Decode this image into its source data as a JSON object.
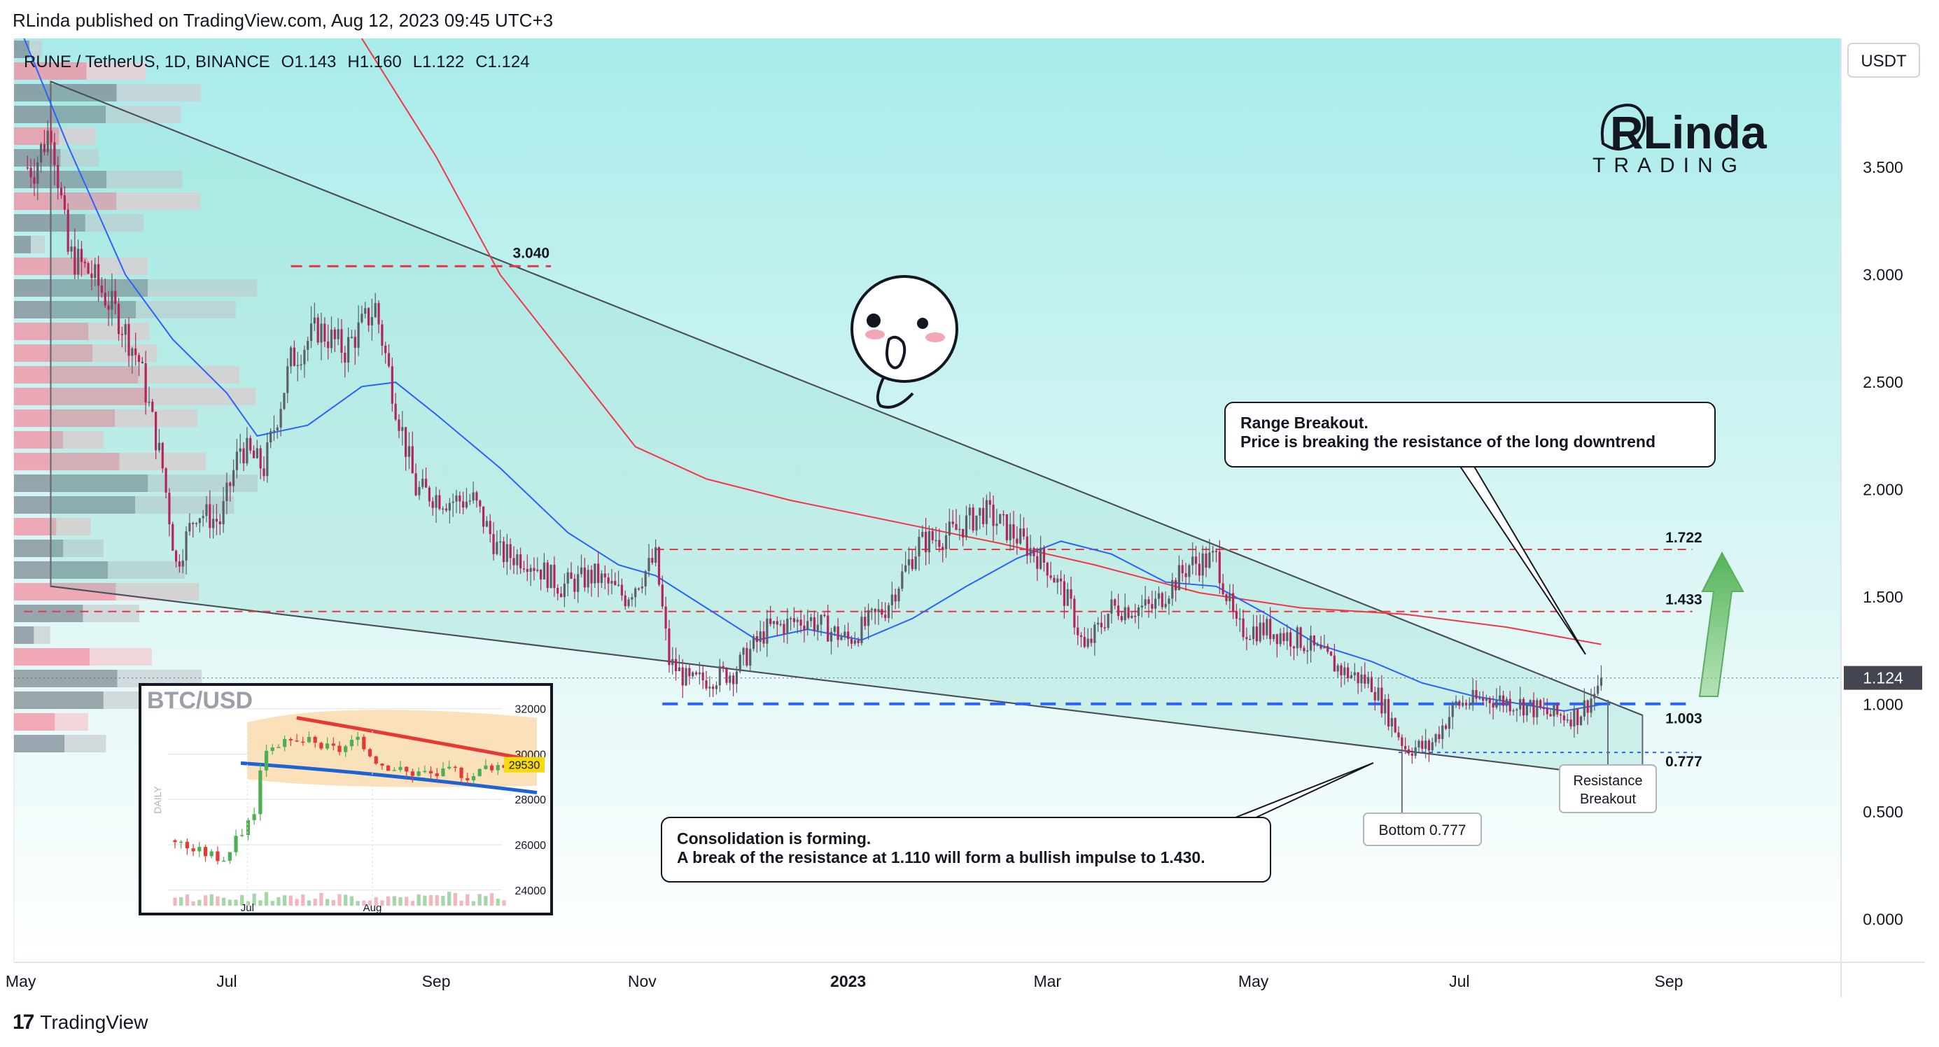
{
  "header": {
    "published": "RLinda published on TradingView.com, Aug 12, 2023 09:45 UTC+3"
  },
  "symbol_line": {
    "pair": "RUNE / TetherUS, 1D, BINANCE",
    "open": "O1.143",
    "high": "H1.160",
    "low": "L1.122",
    "close": "C1.124"
  },
  "currency_button": "USDT",
  "footer": {
    "logo_mark": "17",
    "brand": "TradingView"
  },
  "branding": {
    "top": "RLinda",
    "bottom": "TRADING"
  },
  "colors": {
    "up": "#089981",
    "down": "#f23645",
    "candle": "#b5245a",
    "candle_dark": "#3b3b3b",
    "ma_fast": "#2962ff",
    "ma_slow": "#f23645",
    "breakout_line": "#2962ff",
    "bg_top": "#a9ecec",
    "bg_bottom": "#ffffff",
    "arrow": "#6cc070"
  },
  "chart_data": {
    "type": "candlestick",
    "symbol": "RUNE / TetherUS",
    "timeframe": "1D",
    "exchange": "BINANCE",
    "last_price": 1.124,
    "ylim": [
      -0.2,
      4.1
    ],
    "yticks": [
      "3.500",
      "3.000",
      "2.500",
      "2.000",
      "1.500",
      "1.000",
      "0.500",
      "0.000"
    ],
    "ytick_values": [
      3.5,
      3.0,
      2.5,
      2.0,
      1.5,
      1.0,
      0.5,
      0.0
    ],
    "xticks": [
      {
        "label": "May",
        "date": "2022-05-01"
      },
      {
        "label": "Jul",
        "date": "2022-07-01"
      },
      {
        "label": "Sep",
        "date": "2022-09-01"
      },
      {
        "label": "Nov",
        "date": "2022-11-01"
      },
      {
        "label": "2023",
        "date": "2023-01-01",
        "bold": true
      },
      {
        "label": "Mar",
        "date": "2023-03-01"
      },
      {
        "label": "May",
        "date": "2023-05-01"
      },
      {
        "label": "Jul",
        "date": "2023-07-01"
      },
      {
        "label": "Sep",
        "date": "2023-09-01"
      }
    ],
    "close_path": [
      [
        "2022-05-05",
        3.5
      ],
      [
        "2022-05-10",
        3.7
      ],
      [
        "2022-05-15",
        3.1
      ],
      [
        "2022-05-22",
        3.0
      ],
      [
        "2022-05-30",
        2.8
      ],
      [
        "2022-06-05",
        2.6
      ],
      [
        "2022-06-12",
        2.1
      ],
      [
        "2022-06-16",
        1.65
      ],
      [
        "2022-06-22",
        1.9
      ],
      [
        "2022-06-29",
        1.85
      ],
      [
        "2022-07-05",
        2.2
      ],
      [
        "2022-07-12",
        2.1
      ],
      [
        "2022-07-20",
        2.6
      ],
      [
        "2022-07-28",
        2.75
      ],
      [
        "2022-08-05",
        2.65
      ],
      [
        "2022-08-14",
        2.85
      ],
      [
        "2022-08-20",
        2.4
      ],
      [
        "2022-08-26",
        2.0
      ],
      [
        "2022-09-05",
        1.95
      ],
      [
        "2022-09-12",
        1.95
      ],
      [
        "2022-09-20",
        1.7
      ],
      [
        "2022-09-28",
        1.68
      ],
      [
        "2022-10-08",
        1.55
      ],
      [
        "2022-10-18",
        1.6
      ],
      [
        "2022-10-27",
        1.5
      ],
      [
        "2022-11-05",
        1.68
      ],
      [
        "2022-11-09",
        1.2
      ],
      [
        "2022-11-15",
        1.1
      ],
      [
        "2022-11-28",
        1.15
      ],
      [
        "2022-12-08",
        1.35
      ],
      [
        "2022-12-20",
        1.4
      ],
      [
        "2023-01-01",
        1.3
      ],
      [
        "2023-01-12",
        1.45
      ],
      [
        "2023-01-22",
        1.75
      ],
      [
        "2023-02-01",
        1.8
      ],
      [
        "2023-02-10",
        1.9
      ],
      [
        "2023-02-20",
        1.78
      ],
      [
        "2023-03-01",
        1.65
      ],
      [
        "2023-03-08",
        1.45
      ],
      [
        "2023-03-12",
        1.25
      ],
      [
        "2023-03-20",
        1.45
      ],
      [
        "2023-04-01",
        1.45
      ],
      [
        "2023-04-12",
        1.65
      ],
      [
        "2023-04-20",
        1.68
      ],
      [
        "2023-04-26",
        1.35
      ],
      [
        "2023-05-05",
        1.35
      ],
      [
        "2023-05-15",
        1.3
      ],
      [
        "2023-05-28",
        1.15
      ],
      [
        "2023-06-05",
        1.1
      ],
      [
        "2023-06-10",
        0.95
      ],
      [
        "2023-06-15",
        0.8
      ],
      [
        "2023-06-22",
        0.8
      ],
      [
        "2023-06-30",
        1.0
      ],
      [
        "2023-07-10",
        1.03
      ],
      [
        "2023-07-20",
        1.0
      ],
      [
        "2023-07-28",
        0.95
      ],
      [
        "2023-08-05",
        0.95
      ],
      [
        "2023-08-10",
        1.05
      ],
      [
        "2023-08-12",
        1.124
      ]
    ],
    "ma_fast_path": [
      [
        "2022-05-02",
        4.1
      ],
      [
        "2022-05-15",
        3.6
      ],
      [
        "2022-06-01",
        3.0
      ],
      [
        "2022-06-15",
        2.7
      ],
      [
        "2022-07-01",
        2.45
      ],
      [
        "2022-07-10",
        2.25
      ],
      [
        "2022-07-25",
        2.3
      ],
      [
        "2022-08-10",
        2.48
      ],
      [
        "2022-08-20",
        2.5
      ],
      [
        "2022-09-01",
        2.35
      ],
      [
        "2022-09-20",
        2.1
      ],
      [
        "2022-10-10",
        1.8
      ],
      [
        "2022-10-25",
        1.65
      ],
      [
        "2022-11-05",
        1.6
      ],
      [
        "2022-11-20",
        1.45
      ],
      [
        "2022-12-05",
        1.3
      ],
      [
        "2022-12-20",
        1.35
      ],
      [
        "2023-01-05",
        1.3
      ],
      [
        "2023-01-20",
        1.4
      ],
      [
        "2023-02-05",
        1.55
      ],
      [
        "2023-02-20",
        1.68
      ],
      [
        "2023-03-05",
        1.76
      ],
      [
        "2023-03-20",
        1.7
      ],
      [
        "2023-04-05",
        1.57
      ],
      [
        "2023-04-20",
        1.55
      ],
      [
        "2023-05-05",
        1.42
      ],
      [
        "2023-05-20",
        1.28
      ],
      [
        "2023-06-05",
        1.2
      ],
      [
        "2023-06-20",
        1.1
      ],
      [
        "2023-07-05",
        1.04
      ],
      [
        "2023-07-20",
        1.0
      ],
      [
        "2023-08-01",
        0.97
      ],
      [
        "2023-08-12",
        1.0
      ]
    ],
    "ma_slow_path": [
      [
        "2022-08-10",
        4.1
      ],
      [
        "2022-09-01",
        3.55
      ],
      [
        "2022-09-20",
        3.0
      ],
      [
        "2022-10-10",
        2.6
      ],
      [
        "2022-10-30",
        2.2
      ],
      [
        "2022-11-20",
        2.05
      ],
      [
        "2022-12-15",
        1.95
      ],
      [
        "2023-01-15",
        1.85
      ],
      [
        "2023-02-15",
        1.75
      ],
      [
        "2023-03-15",
        1.65
      ],
      [
        "2023-04-15",
        1.52
      ],
      [
        "2023-05-15",
        1.45
      ],
      [
        "2023-06-15",
        1.42
      ],
      [
        "2023-07-15",
        1.36
      ],
      [
        "2023-08-12",
        1.28
      ]
    ],
    "trendlines": [
      {
        "from": [
          "2022-05-02",
          3.9
        ],
        "to": [
          "2023-08-18",
          0.95
        ]
      },
      {
        "from": [
          "2022-05-02",
          1.55
        ],
        "to": [
          "2023-08-18",
          0.65
        ]
      }
    ],
    "levels": [
      {
        "label": "3.040",
        "value": 3.04,
        "style": "red-dashed",
        "from": "2022-07-20",
        "to": "2022-10-05"
      },
      {
        "label": "1.722",
        "value": 1.722,
        "style": "red-dashed",
        "from": "2022-11-05",
        "to": "2023-09-08"
      },
      {
        "label": "1.433",
        "value": 1.433,
        "style": "red-dashed",
        "from": "2022-05-02",
        "to": "2023-09-08"
      },
      {
        "label": "1.003",
        "value": 1.003,
        "style": "blue-dashed",
        "from": "2022-11-07",
        "to": "2023-09-08"
      },
      {
        "label": "0.777",
        "value": 0.777,
        "style": "blue-dotted",
        "from": "2023-06-13",
        "to": "2023-09-08"
      }
    ],
    "annotations": {
      "range_breakout": [
        "Range Breakout.",
        "Price is breaking the resistance of the long downtrend"
      ],
      "consolidation": [
        "Consolidation is forming.",
        "A break of the resistance at 1.110 will form a bullish impulse to 1.430."
      ],
      "bottom": "Bottom 0.777",
      "resistance_breakout": [
        "Resistance",
        "Breakout"
      ]
    },
    "inset": {
      "title": "BTC/USD",
      "side_label": "DAILY",
      "yticks": [
        "32000",
        "30000",
        "28000",
        "26000",
        "24000"
      ],
      "ytick_values": [
        32000,
        30000,
        28000,
        26000,
        24000
      ],
      "xticks": [
        "Jul",
        "Aug"
      ],
      "last_label": "29530",
      "last_value": 29530,
      "ylim": [
        23500,
        32700
      ],
      "close_path": [
        [
          0.0,
          26200
        ],
        [
          0.05,
          25800
        ],
        [
          0.1,
          25600
        ],
        [
          0.15,
          25400
        ],
        [
          0.2,
          26500
        ],
        [
          0.24,
          27500
        ],
        [
          0.27,
          30200
        ],
        [
          0.3,
          30500
        ],
        [
          0.35,
          30400
        ],
        [
          0.4,
          30600
        ],
        [
          0.45,
          30300
        ],
        [
          0.5,
          30200
        ],
        [
          0.55,
          30600
        ],
        [
          0.6,
          29900
        ],
        [
          0.63,
          29600
        ],
        [
          0.67,
          29400
        ],
        [
          0.7,
          29200
        ],
        [
          0.75,
          29200
        ],
        [
          0.8,
          29100
        ],
        [
          0.85,
          29300
        ],
        [
          0.9,
          29000
        ],
        [
          0.95,
          29500
        ],
        [
          1.0,
          29530
        ]
      ]
    }
  }
}
